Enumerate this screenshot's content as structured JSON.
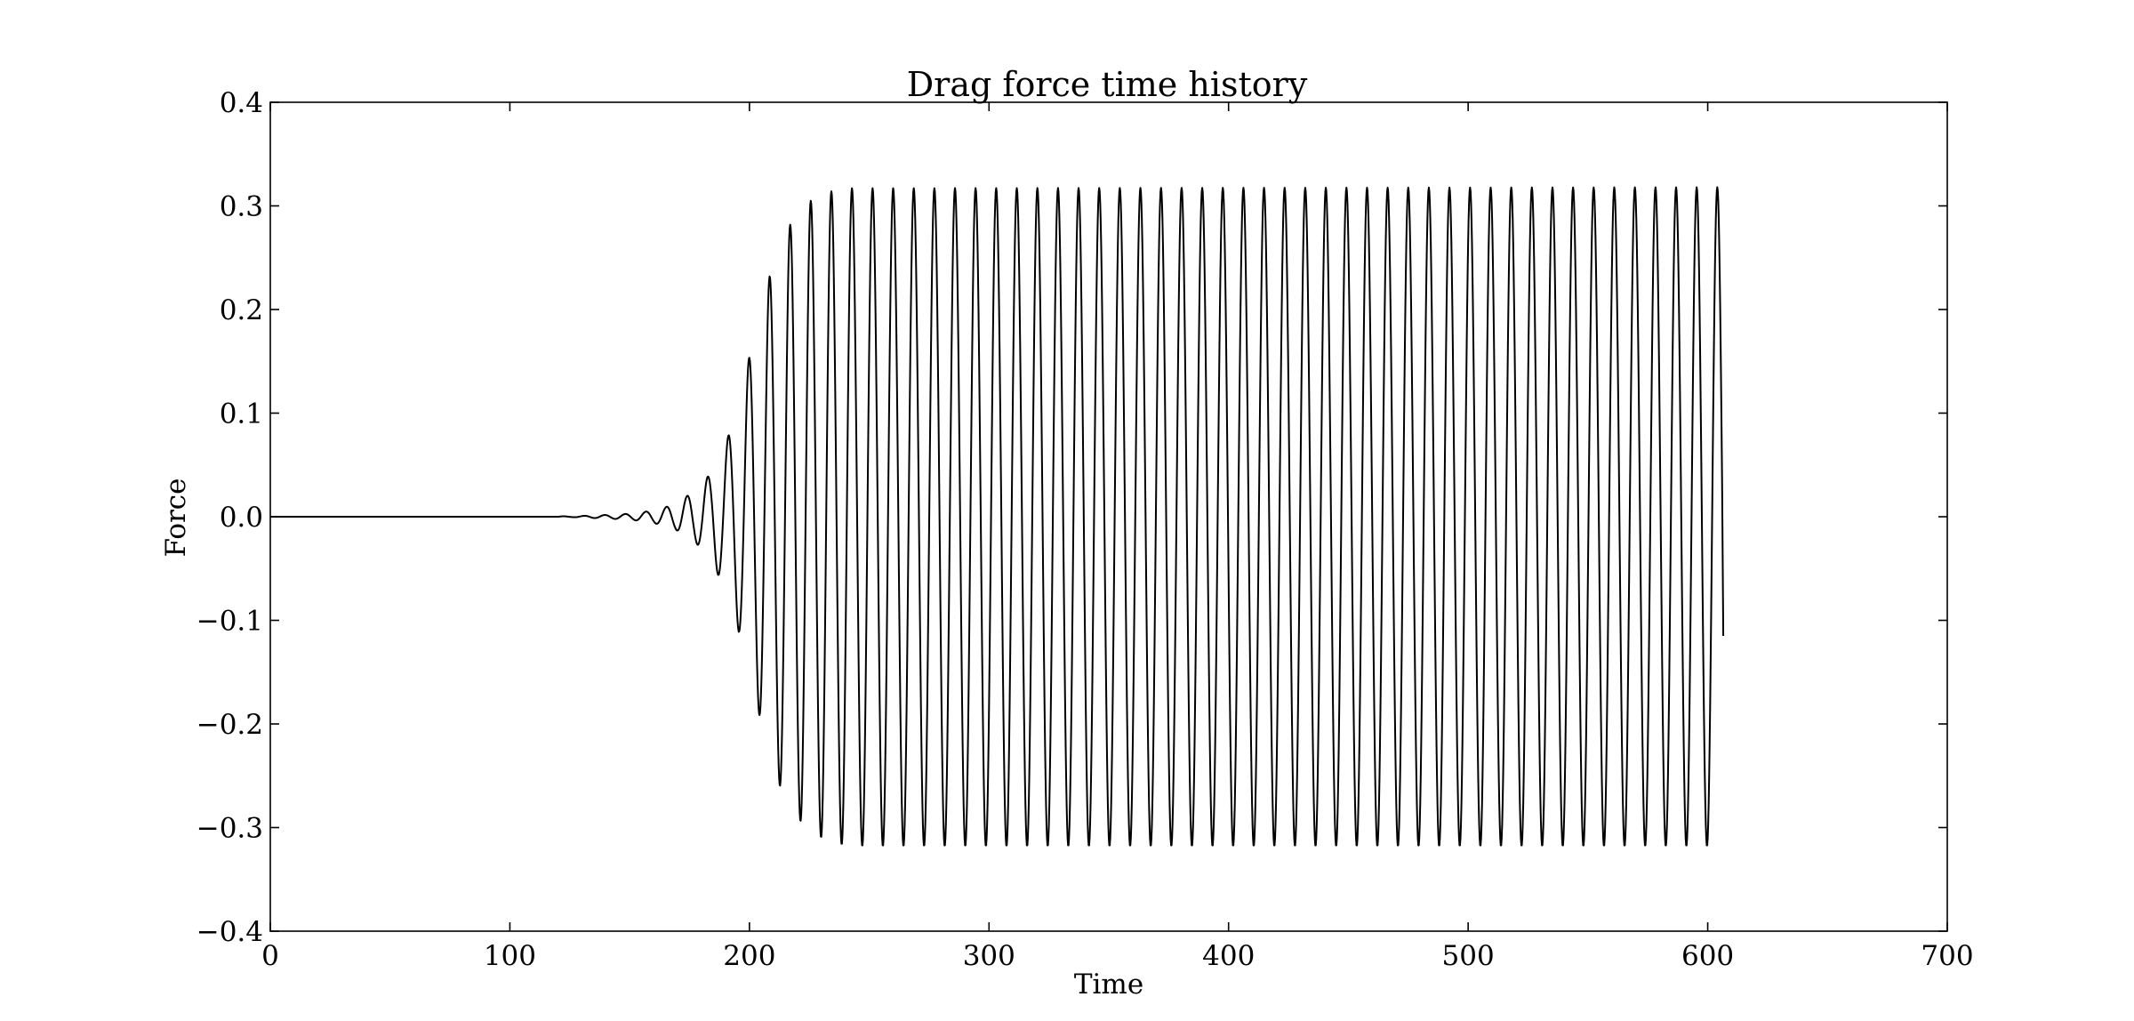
{
  "chart_data": {
    "type": "line",
    "title": "Drag force time history",
    "xlabel": "Time",
    "ylabel": "Force",
    "xlim": [
      0,
      700
    ],
    "ylim": [
      -0.4,
      0.4
    ],
    "xticks": [
      0,
      100,
      200,
      300,
      400,
      500,
      600,
      700
    ],
    "xtick_labels": [
      "0",
      "100",
      "200",
      "300",
      "400",
      "500",
      "600",
      "700"
    ],
    "yticks": [
      -0.4,
      -0.3,
      -0.2,
      -0.1,
      0.0,
      0.1,
      0.2,
      0.3,
      0.4
    ],
    "ytick_labels": [
      "−0.4",
      "−0.3",
      "−0.2",
      "−0.1",
      "0.0",
      "0.1",
      "0.2",
      "0.3",
      "0.4"
    ],
    "grid": false,
    "legend": "none",
    "line_color": "#000000",
    "series": [
      {
        "t_end": 606,
        "onset_time": 120,
        "period": 8.6,
        "steady_amplitude": 0.318,
        "final_value": -0.115,
        "peaks": [
          {
            "x": 126,
            "y": 0.0004
          },
          {
            "x": 143,
            "y": 0.002
          },
          {
            "x": 151,
            "y": 0.003
          },
          {
            "x": 160,
            "y": 0.006
          },
          {
            "x": 169,
            "y": 0.012
          },
          {
            "x": 177,
            "y": 0.025
          },
          {
            "x": 186,
            "y": 0.047
          },
          {
            "x": 194,
            "y": 0.095
          },
          {
            "x": 201,
            "y": 0.165
          },
          {
            "x": 208,
            "y": 0.229
          },
          {
            "x": 214,
            "y": 0.272
          },
          {
            "x": 221,
            "y": 0.295
          },
          {
            "x": 227,
            "y": 0.308
          },
          {
            "x": 234,
            "y": 0.314
          },
          {
            "x": 240,
            "y": 0.317
          },
          {
            "x": 604,
            "y": 0.318
          }
        ],
        "troughs": [
          {
            "x": 173,
            "y": -0.015
          },
          {
            "x": 181,
            "y": -0.033
          },
          {
            "x": 190,
            "y": -0.068
          },
          {
            "x": 198,
            "y": -0.13
          },
          {
            "x": 205,
            "y": -0.2
          },
          {
            "x": 211,
            "y": -0.252
          },
          {
            "x": 218,
            "y": -0.284
          },
          {
            "x": 224,
            "y": -0.302
          },
          {
            "x": 231,
            "y": -0.311
          },
          {
            "x": 237,
            "y": -0.316
          },
          {
            "x": 244,
            "y": -0.318
          },
          {
            "x": 605,
            "y": -0.318
          }
        ]
      }
    ]
  }
}
